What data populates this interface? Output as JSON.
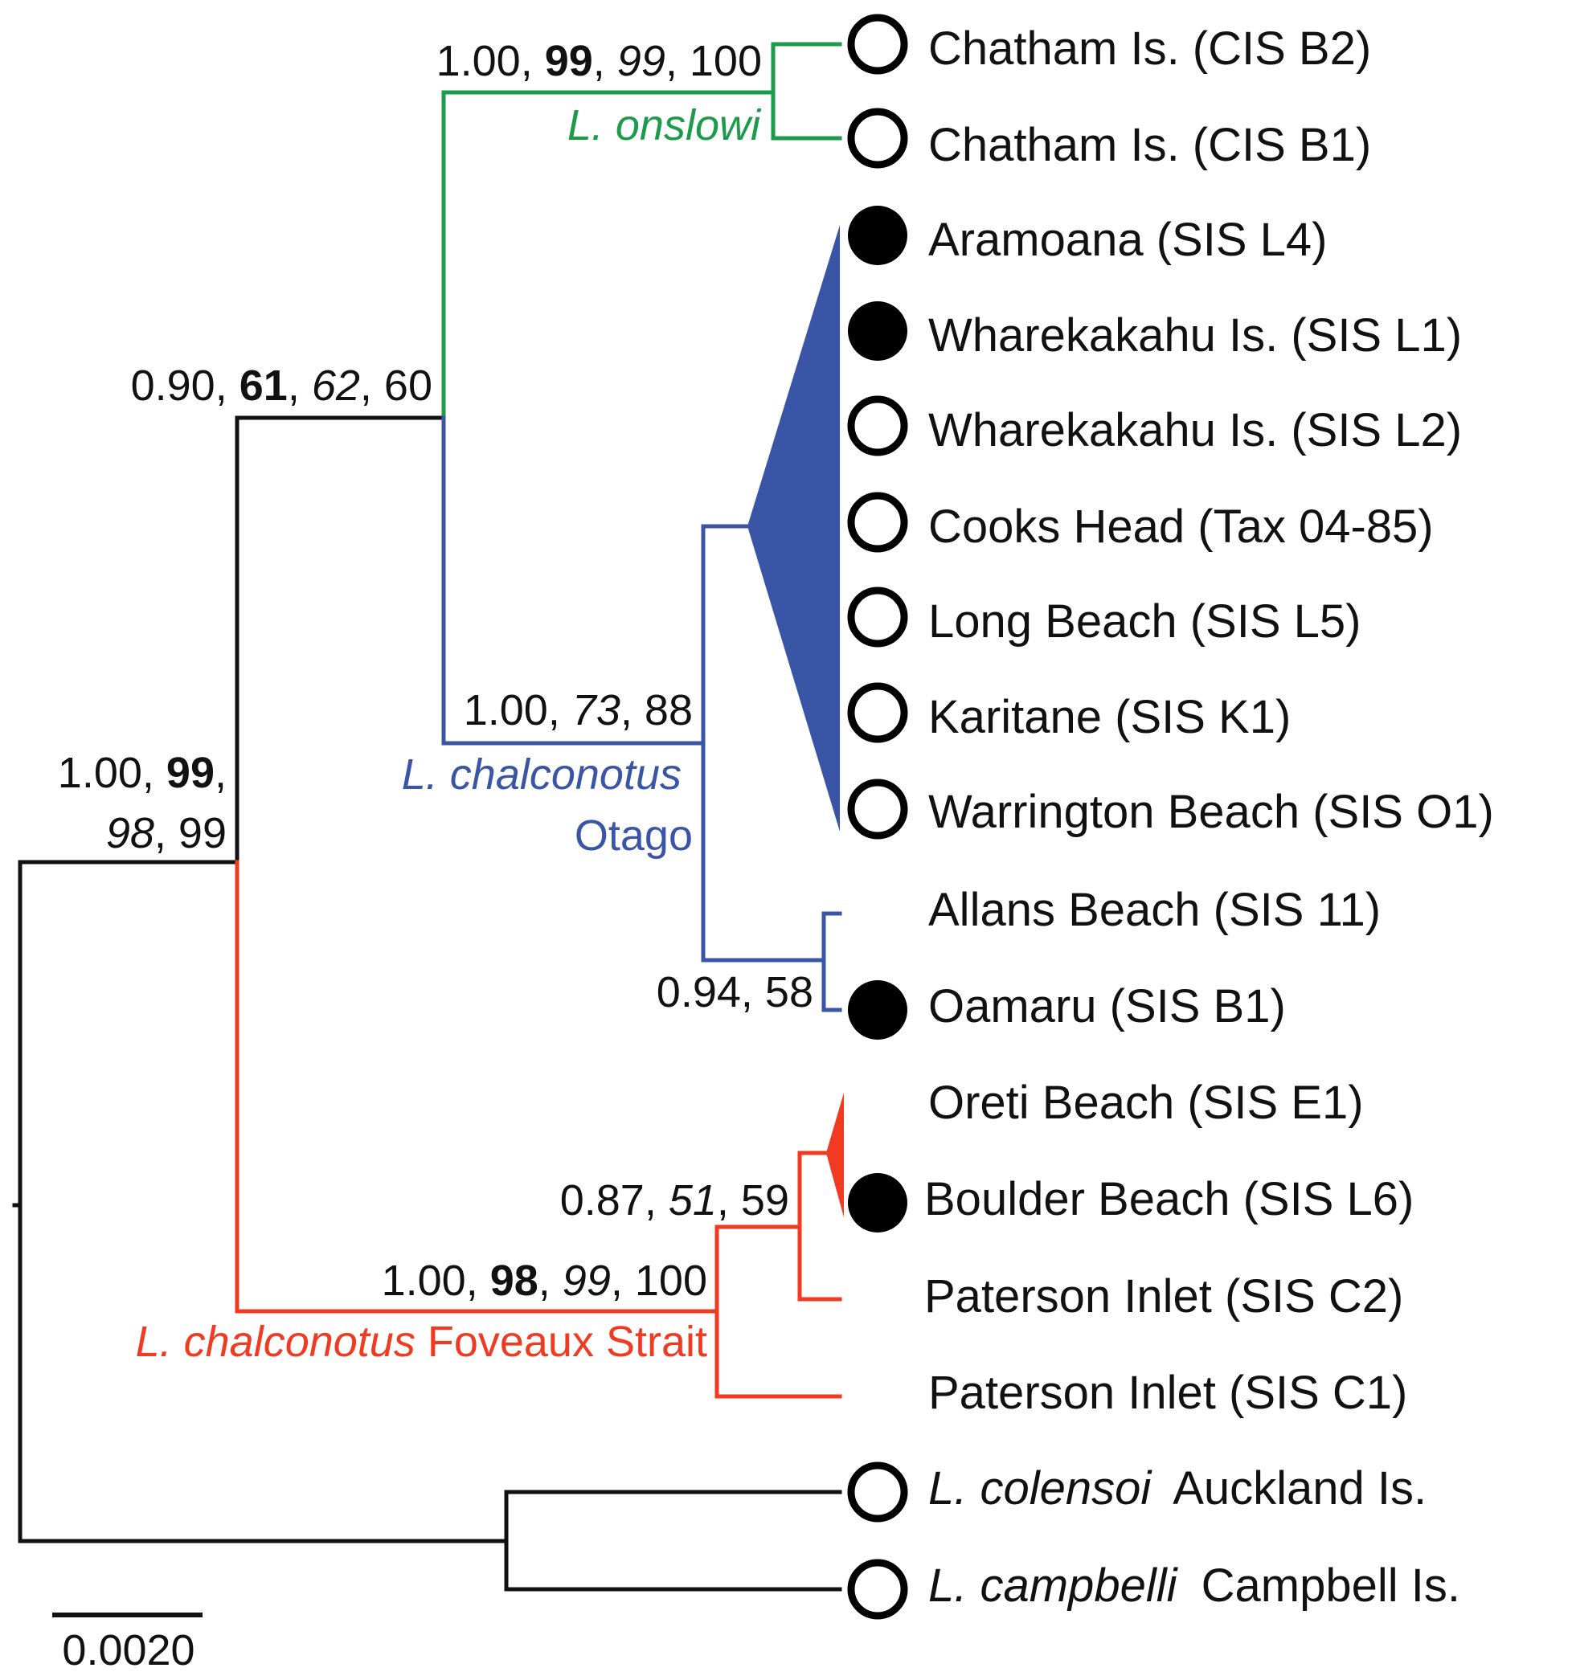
{
  "colors": {
    "black": "#111111",
    "onslowi": "#1e9a4b",
    "otago": "#3a55a6",
    "foveaux": "#f03a22"
  },
  "taxa": [
    {
      "name": "Chatham Is. (CIS B2)",
      "marker": "open"
    },
    {
      "name": "Chatham Is. (CIS B1)",
      "marker": "open"
    },
    {
      "name": "Aramoana (SIS L4)",
      "marker": "filled"
    },
    {
      "name": "Wharekakahu Is. (SIS L1)",
      "marker": "filled"
    },
    {
      "name": "Wharekakahu Is. (SIS L2)",
      "marker": "open"
    },
    {
      "name": "Cooks Head (Tax 04-85)",
      "marker": "open"
    },
    {
      "name": "Long Beach (SIS L5)",
      "marker": "open"
    },
    {
      "name": "Karitane (SIS K1)",
      "marker": "open"
    },
    {
      "name": "Warrington Beach (SIS O1)",
      "marker": "open"
    },
    {
      "name": "Allans Beach (SIS 11)",
      "marker": "none"
    },
    {
      "name": "Oamaru (SIS B1)",
      "marker": "filled"
    },
    {
      "name": "Oreti Beach (SIS E1)",
      "marker": "none"
    },
    {
      "name": "Boulder Beach (SIS L6)",
      "marker": "filled"
    },
    {
      "name": "Paterson Inlet (SIS C2)",
      "marker": "none"
    },
    {
      "name": "Paterson Inlet (SIS C1)",
      "marker": "none"
    },
    {
      "name": "Auckland Is.",
      "italic_prefix": "L. colensoi",
      "marker": "open"
    },
    {
      "name": "Campbell Is.",
      "italic_prefix": "L. campbelli",
      "marker": "open"
    }
  ],
  "support": {
    "onslowi": {
      "a": "1.00",
      "b": "99",
      "c": "99",
      "d": "100"
    },
    "ingroup_top": {
      "a": "0.90",
      "b": "61",
      "c": "62",
      "d": "60"
    },
    "root_ingroup": {
      "a": "1.00",
      "b": "99",
      "c": "98",
      "d": "99"
    },
    "otago": {
      "a": "1.00",
      "c": "73",
      "d": "88"
    },
    "allans_oamaru": {
      "a": "0.94",
      "d": "58"
    },
    "foveaux_inner": {
      "a": "0.87",
      "c": "51",
      "d": "59"
    },
    "foveaux": {
      "a": "1.00",
      "b": "98",
      "c": "99",
      "d": "100"
    }
  },
  "clades": {
    "onslowi": "L. onslowi",
    "otago_italic": "L. chalconotus",
    "otago_plain": "Otago",
    "foveaux_italic": "L. chalconotus",
    "foveaux_plain": "Foveaux Strait"
  },
  "scale_bar": {
    "label": "0.0020"
  }
}
